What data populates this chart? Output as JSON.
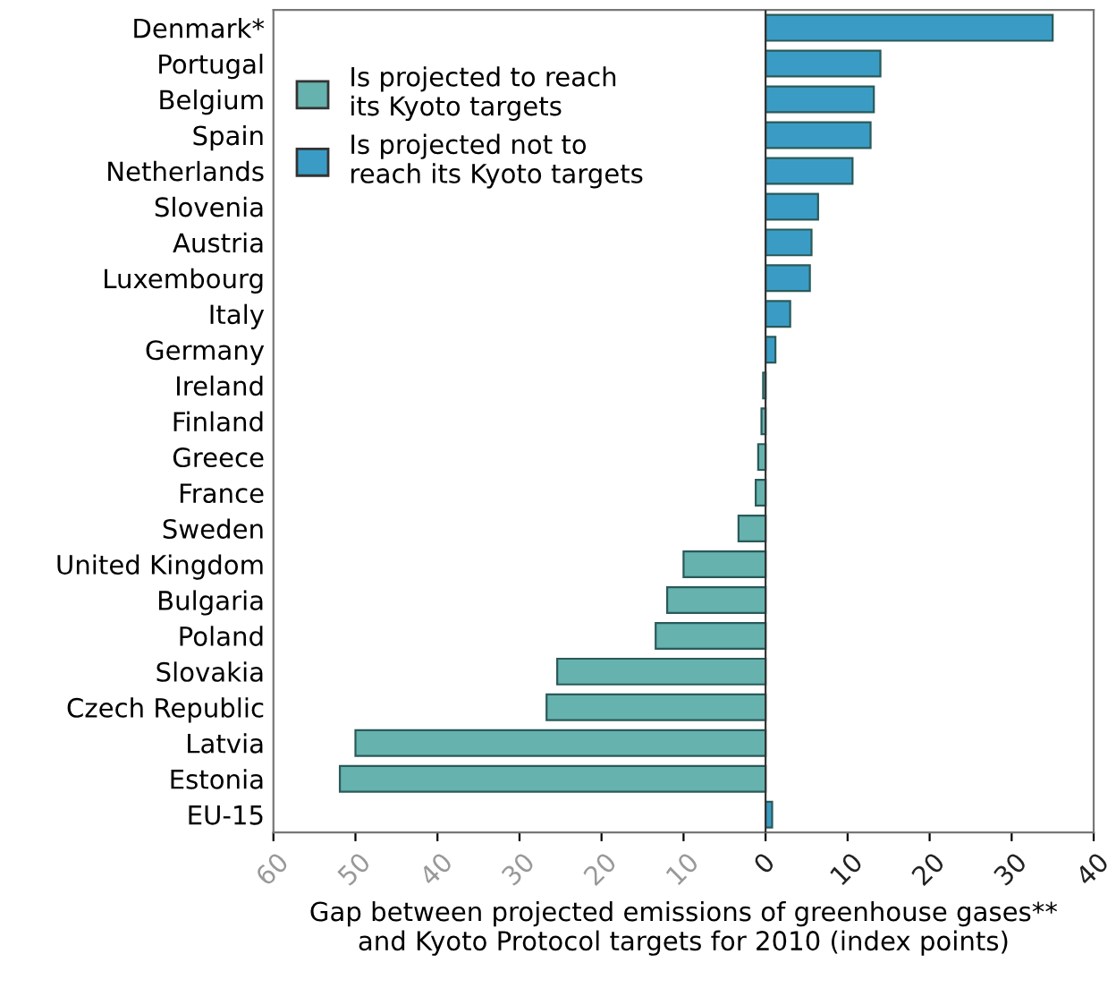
{
  "chart_data": {
    "type": "bar",
    "orientation": "horizontal",
    "categories": [
      "Denmark*",
      "Portugal",
      "Belgium",
      "Spain",
      "Netherlands",
      "Slovenia",
      "Austria",
      "Luxembourg",
      "Italy",
      "Germany",
      "Ireland",
      "Finland",
      "Greece",
      "France",
      "Sweden",
      "United Kingdom",
      "Bulgaria",
      "Poland",
      "Slovakia",
      "Czech Republic",
      "Latvia",
      "Estonia",
      "EU-15"
    ],
    "series": [
      {
        "name": "Is projected to reach\nits Kyoto targets",
        "color": "#66b2ae",
        "values": [
          null,
          null,
          null,
          null,
          null,
          null,
          null,
          null,
          null,
          null,
          -0.3,
          -0.5,
          -0.9,
          -1.2,
          -3.3,
          -10,
          -12,
          -13.4,
          -25.4,
          -26.7,
          -50,
          -51.9,
          null
        ]
      },
      {
        "name": "Is projected not to\nreach its Kyoto targets",
        "color": "#3a9cc4",
        "values": [
          35,
          14,
          13.2,
          12.8,
          10.6,
          6.4,
          5.6,
          5.4,
          3,
          1.2,
          null,
          null,
          null,
          null,
          null,
          null,
          null,
          null,
          null,
          null,
          null,
          null,
          0.8
        ]
      }
    ],
    "xlim": [
      -60,
      40
    ],
    "xticks": [
      {
        "value": -60,
        "label": "60"
      },
      {
        "value": -50,
        "label": "50"
      },
      {
        "value": -40,
        "label": "40"
      },
      {
        "value": -30,
        "label": "30"
      },
      {
        "value": -20,
        "label": "20"
      },
      {
        "value": -10,
        "label": "10"
      },
      0,
      10,
      20,
      30,
      40
    ],
    "xlabel": "Gap between projected emissions of greenhouse gases**\nand Kyoto Protocol targets for 2010 (index points)",
    "ref_lines": [
      {
        "axis": "x",
        "value": 0,
        "color": "#333333"
      }
    ],
    "legend": "top left",
    "grid": false
  }
}
